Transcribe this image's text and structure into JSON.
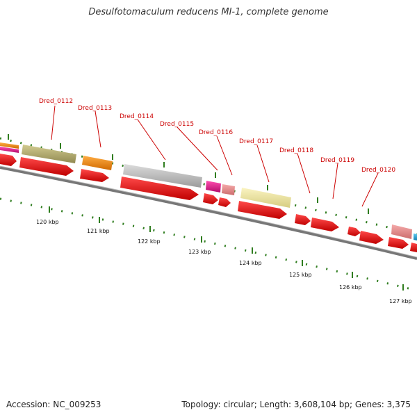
{
  "title": "Desulfotomaculum reducens MI-1, complete genome",
  "footer": {
    "accession": "Accession: NC_009253",
    "summary": "Topology: circular; Length: 3,608,104 bp; Genes: 3,375"
  },
  "scale": {
    "tick_labels": [
      "120 kbp",
      "121 kbp",
      "122 kbp",
      "123 kbp",
      "124 kbp",
      "125 kbp",
      "126 kbp",
      "127 kbp"
    ]
  },
  "gene_labels": [
    "Dred_0112",
    "Dred_0113",
    "Dred_0114",
    "Dred_0115",
    "Dred_0116",
    "Dred_0117",
    "Dred_0118",
    "Dred_0119",
    "Dred_0120"
  ],
  "colors": {
    "cds": "#e81010",
    "backbone": "#888888",
    "tick_major": "#2f7d1f",
    "label": "#cc0000",
    "olive": "#b4ad6e",
    "orange": "#f38a10",
    "gray": "#bdbdbd",
    "magenta": "#e0168c",
    "pink": "#e98c8c",
    "yellow": "#efe7a0",
    "cyan": "#25a6d8"
  }
}
